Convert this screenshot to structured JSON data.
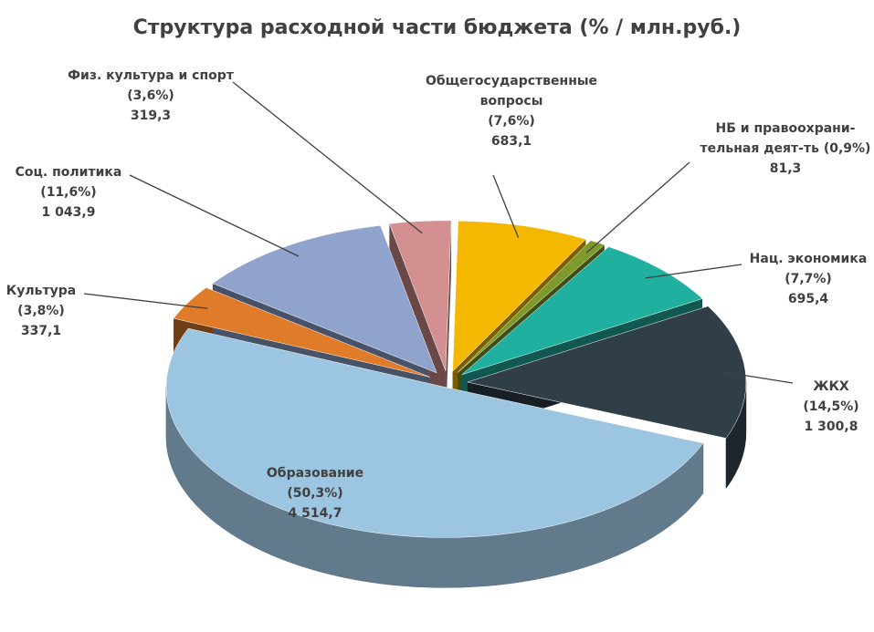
{
  "chart_data": {
    "type": "pie3d",
    "title": "Структура расходной части  бюджета (% / млн.руб.)",
    "categories": [
      "Общегосударственные вопросы",
      "НБ и правоохрани-тельная деят-ть",
      "Нац. экономика",
      "ЖКХ",
      "Образование",
      "Культура",
      "Соц. политика",
      "Физ. культура и спорт"
    ],
    "values": [
      683.1,
      81.3,
      695.4,
      1300.8,
      4514.7,
      337.1,
      1043.9,
      319.3
    ],
    "value_labels": [
      "683,1",
      "81,3",
      "695,4",
      "1 300,8",
      "4 514,7",
      "337,1",
      "1 043,9",
      "319,3"
    ],
    "percents": [
      7.6,
      0.9,
      7.7,
      14.5,
      50.3,
      3.8,
      11.6,
      3.6
    ],
    "percent_labels": [
      "(7,6%)",
      "(0,9%)",
      "(7,7%)",
      "(14,5%)",
      "(50,3%)",
      "(3,8%)",
      "(11,6%)",
      "(3,6%)"
    ],
    "colors": [
      "#f5b800",
      "#7f9a2c",
      "#1fb0a0",
      "#2f3e47",
      "#9cc5e1",
      "#e07b2a",
      "#8fa3cc",
      "#d49090"
    ]
  }
}
